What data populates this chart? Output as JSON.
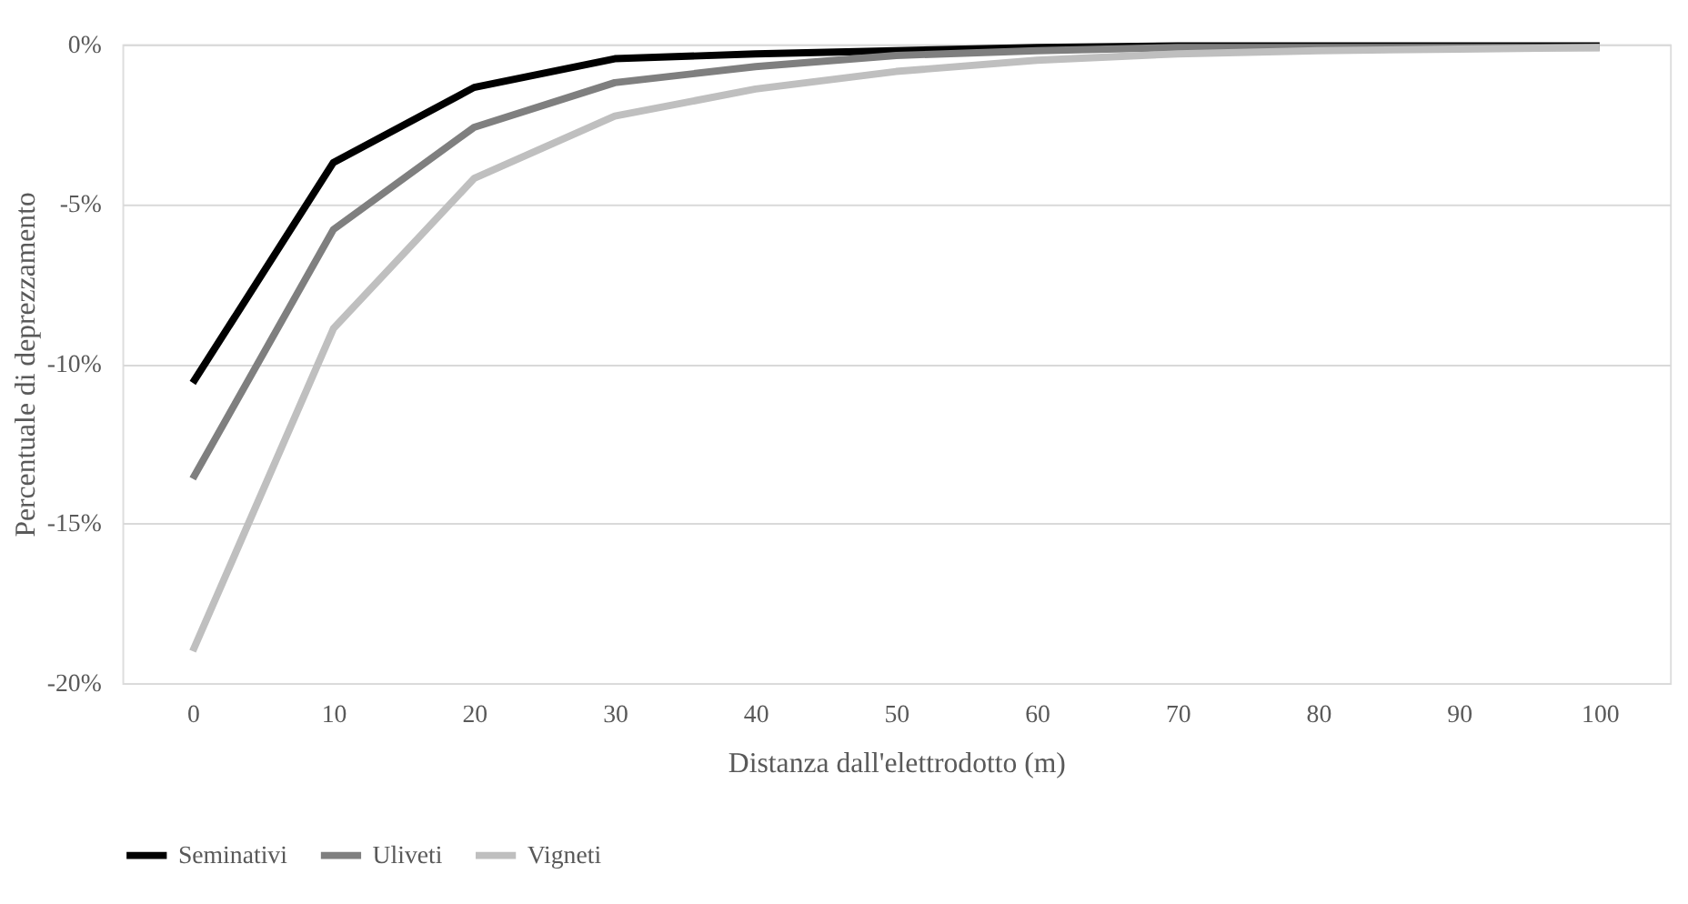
{
  "chart_data": {
    "type": "line",
    "xlabel": "Distanza dall'elettrodotto (m)",
    "ylabel": "Percentuale di deprezzamento",
    "categories": [
      "0",
      "10",
      "20",
      "30",
      "40",
      "50",
      "60",
      "70",
      "80",
      "90",
      "100"
    ],
    "series": [
      {
        "name": "Seminativi",
        "color": "#000000",
        "values": [
          -10.6,
          -3.7,
          -1.35,
          -0.45,
          -0.3,
          -0.2,
          -0.1,
          -0.05,
          -0.05,
          -0.05,
          -0.05
        ]
      },
      {
        "name": "Uliveti",
        "color": "#7f7f7f",
        "values": [
          -13.6,
          -5.8,
          -2.6,
          -1.2,
          -0.7,
          -0.35,
          -0.2,
          -0.1,
          -0.1,
          -0.1,
          -0.1
        ]
      },
      {
        "name": "Vigneti",
        "color": "#bfbfbf",
        "values": [
          -19.0,
          -8.9,
          -4.2,
          -2.25,
          -1.4,
          -0.85,
          -0.5,
          -0.3,
          -0.2,
          -0.15,
          -0.1
        ]
      }
    ],
    "ylim": [
      -20,
      0
    ],
    "yticks": [
      {
        "value": -20,
        "label": "-20%"
      },
      {
        "value": -15,
        "label": "-15%"
      },
      {
        "value": -10,
        "label": "-10%"
      },
      {
        "value": -5,
        "label": "-5%"
      },
      {
        "value": 0,
        "label": "0%"
      }
    ],
    "grid": "y",
    "legend": "bottom",
    "marker": "none",
    "line_style": "solid"
  }
}
